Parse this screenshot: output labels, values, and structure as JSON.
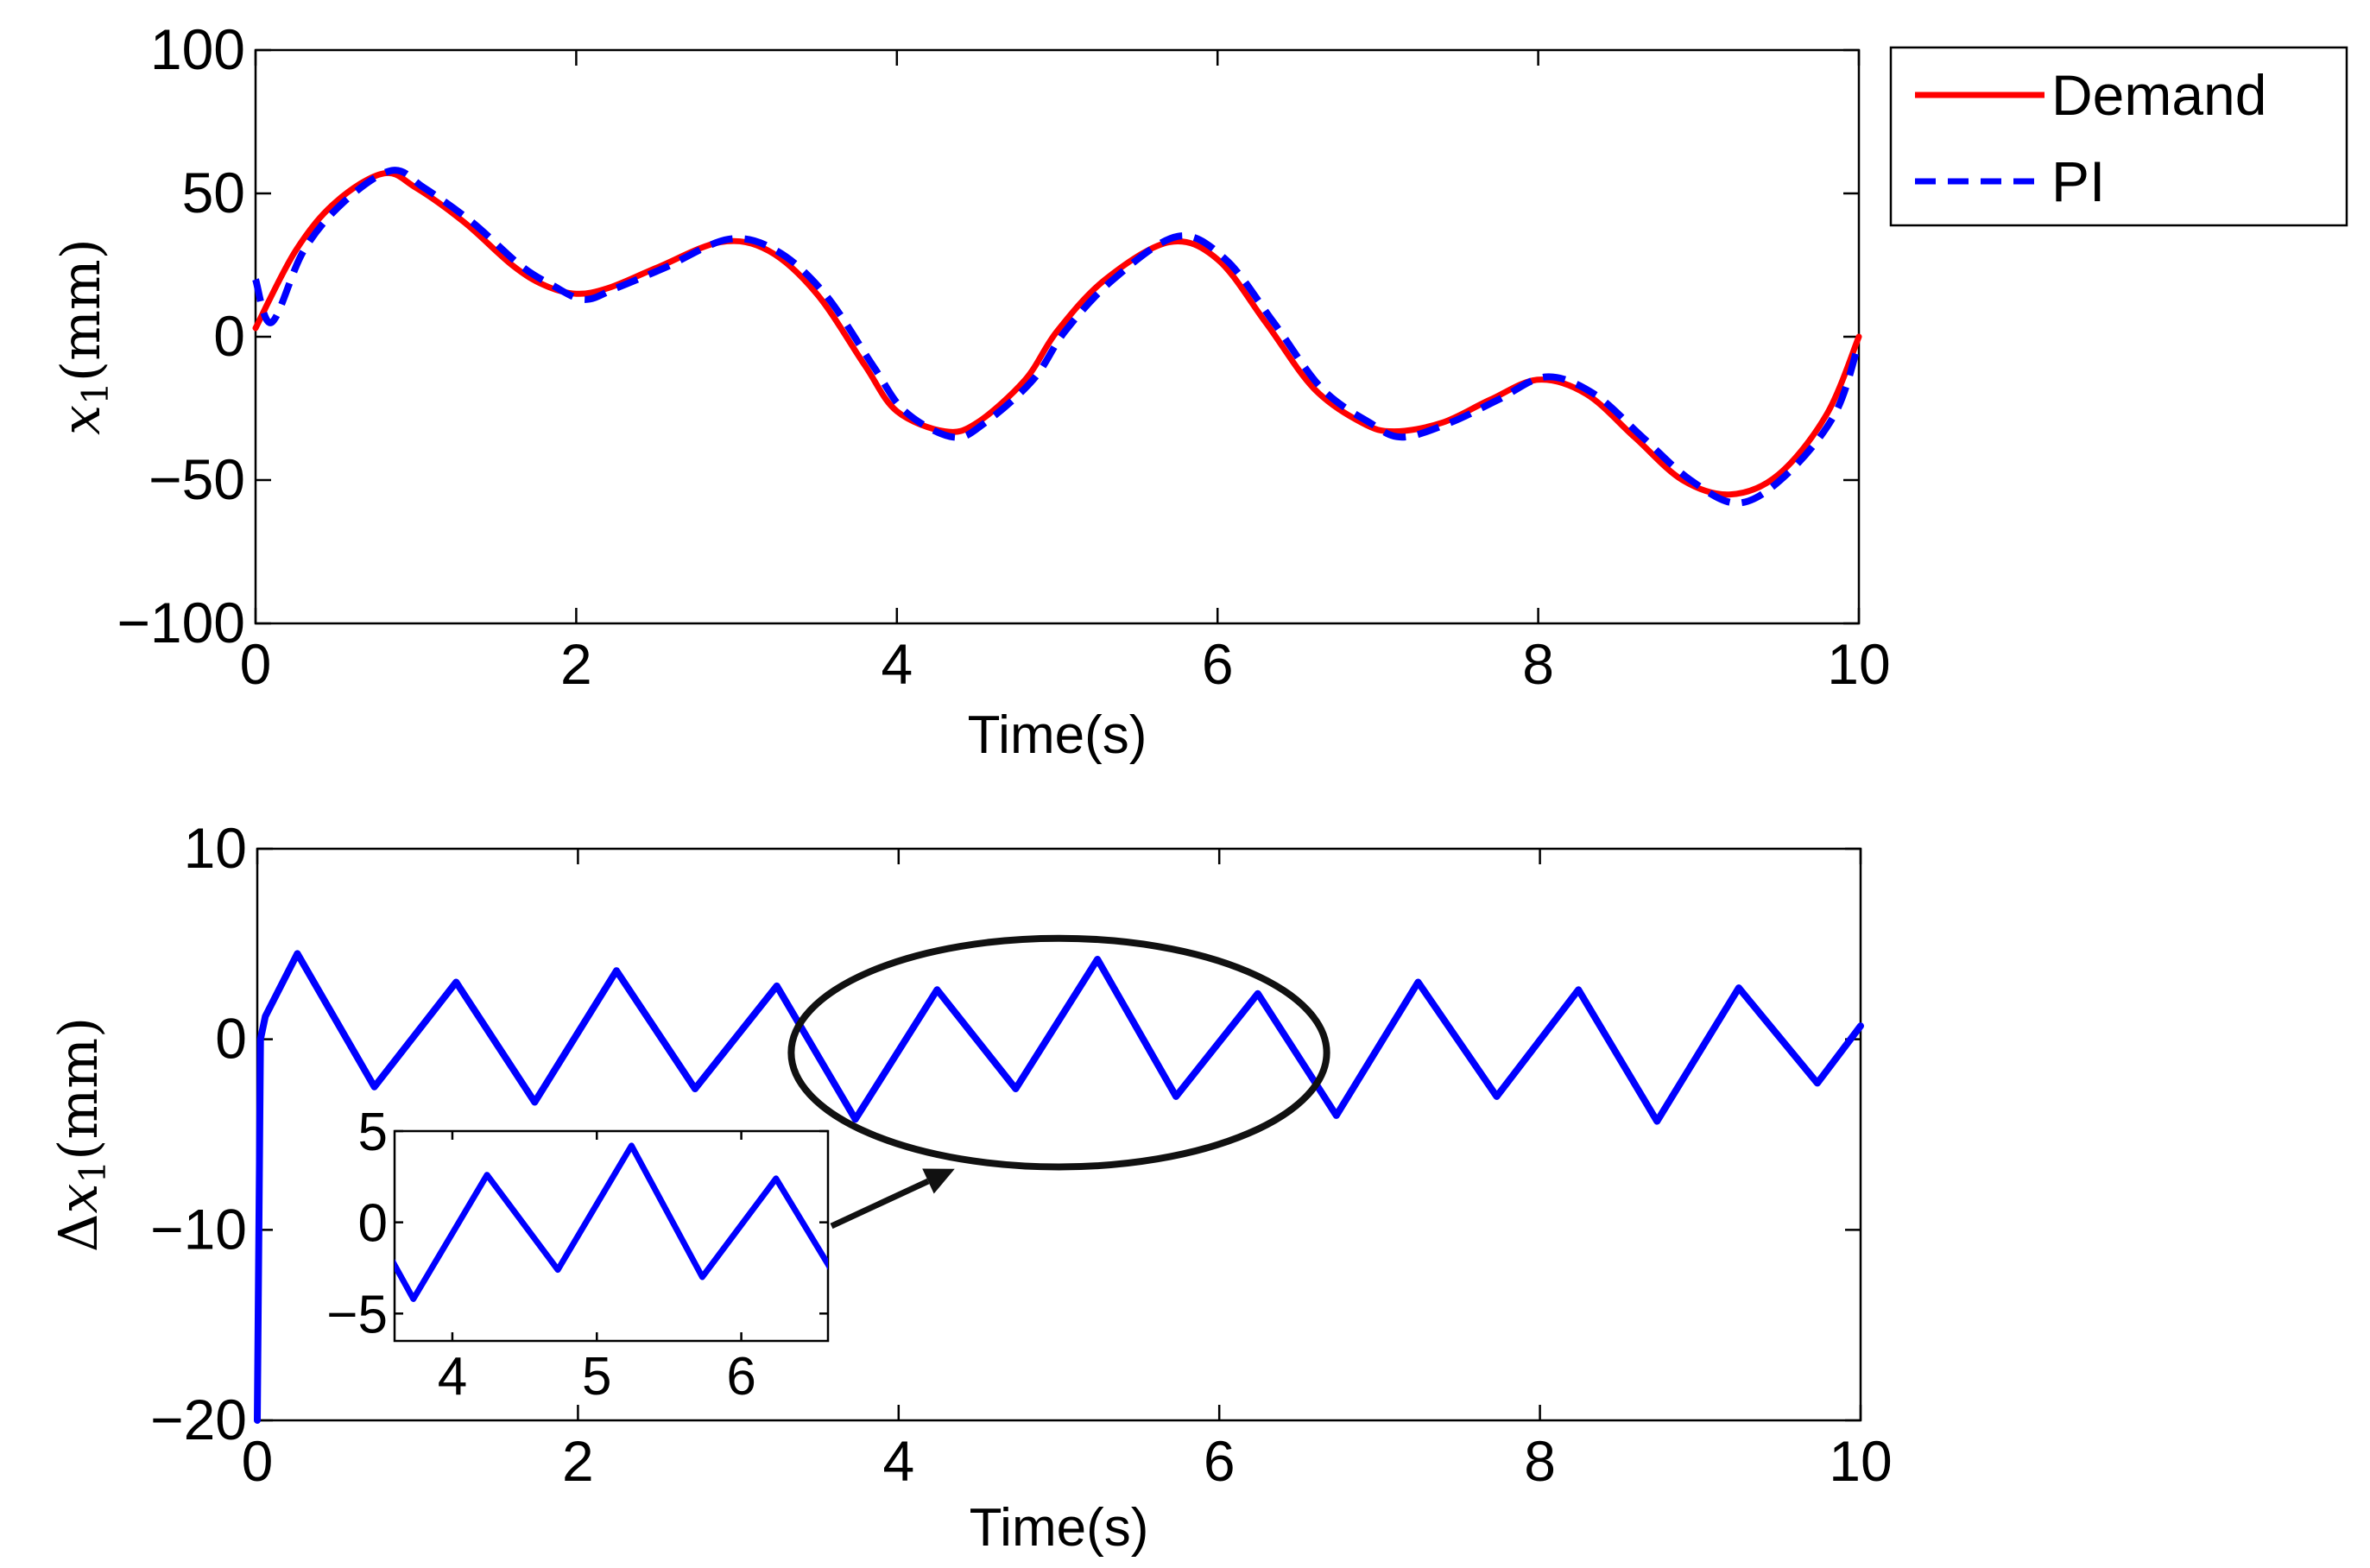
{
  "chart_data": [
    {
      "type": "line",
      "id": "top",
      "xlabel": "Time(s)",
      "ylabel": {
        "var": "x",
        "sub": "1",
        "unit": "(mm)"
      },
      "xlim": [
        0,
        10
      ],
      "ylim": [
        -100,
        100
      ],
      "xticks": [
        0,
        2,
        4,
        6,
        8,
        10
      ],
      "yticks": [
        -100,
        -50,
        0,
        50,
        100
      ],
      "xtick_labels": [
        "0",
        "2",
        "4",
        "6",
        "8",
        "10"
      ],
      "ytick_labels": [
        "−100",
        "−50",
        "0",
        "50",
        "100"
      ],
      "grid": false,
      "legend_position": "outside-top-right",
      "series": [
        {
          "name": "Demand",
          "style": "solid",
          "color": "#ff0000",
          "x": [
            0,
            0.25,
            0.5,
            0.8,
            1.0,
            1.3,
            1.6,
            1.8,
            2.0,
            2.2,
            2.5,
            2.9,
            3.2,
            3.5,
            3.8,
            4.0,
            4.3,
            4.5,
            4.8,
            5.0,
            5.3,
            5.7,
            6.0,
            6.3,
            6.6,
            6.9,
            7.1,
            7.4,
            7.7,
            8.0,
            8.3,
            8.6,
            8.9,
            9.2,
            9.5,
            9.8,
            10.0
          ],
          "y": [
            3,
            30,
            47,
            57,
            52,
            40,
            25,
            18,
            15,
            17,
            24,
            33,
            30,
            15,
            -10,
            -26,
            -33,
            -30,
            -15,
            2,
            20,
            33,
            27,
            5,
            -18,
            -30,
            -33,
            -30,
            -22,
            -15,
            -20,
            -35,
            -50,
            -55,
            -48,
            -27,
            0
          ]
        },
        {
          "name": "PI",
          "style": "dashed",
          "color": "#0000ff",
          "x": [
            0,
            0.1,
            0.3,
            0.55,
            0.85,
            1.05,
            1.35,
            1.65,
            1.85,
            2.05,
            2.25,
            2.55,
            2.95,
            3.25,
            3.55,
            3.85,
            4.05,
            4.35,
            4.55,
            4.85,
            5.05,
            5.35,
            5.75,
            6.05,
            6.35,
            6.65,
            6.95,
            7.15,
            7.45,
            7.75,
            8.05,
            8.35,
            8.65,
            8.95,
            9.25,
            9.55,
            9.85,
            10.0
          ],
          "y": [
            20,
            5,
            30,
            47,
            58,
            52,
            40,
            25,
            18,
            13,
            17,
            24,
            34,
            30,
            15,
            -10,
            -26,
            -35,
            -30,
            -15,
            2,
            20,
            35,
            27,
            5,
            -18,
            -30,
            -35,
            -30,
            -22,
            -14,
            -20,
            -35,
            -50,
            -58,
            -48,
            -27,
            -2
          ]
        }
      ]
    },
    {
      "type": "line",
      "id": "bottom",
      "xlabel": "Time(s)",
      "ylabel": {
        "prefix": "Δ",
        "var": "x",
        "sub": "1",
        "unit": "(mm)"
      },
      "xlim": [
        0,
        10
      ],
      "ylim": [
        -20,
        10
      ],
      "xticks": [
        0,
        2,
        4,
        6,
        8,
        10
      ],
      "yticks": [
        -20,
        -10,
        0,
        10
      ],
      "xtick_labels": [
        "0",
        "2",
        "4",
        "6",
        "8",
        "10"
      ],
      "ytick_labels": [
        "−20",
        "−10",
        "0",
        "10"
      ],
      "grid": false,
      "series": [
        {
          "color": "#0000ff",
          "x": [
            0,
            0.02,
            0.05,
            0.25,
            0.73,
            1.24,
            1.73,
            2.24,
            2.73,
            3.24,
            3.73,
            4.24,
            4.73,
            5.24,
            5.73,
            6.24,
            6.73,
            7.24,
            7.73,
            8.24,
            8.73,
            9.24,
            9.73,
            10.0
          ],
          "y": [
            -20,
            0,
            1.2,
            4.5,
            -2.5,
            3.0,
            -3.3,
            3.6,
            -2.6,
            2.8,
            -4.2,
            2.6,
            -2.6,
            4.2,
            -3.0,
            2.4,
            -4.0,
            3.0,
            -3.0,
            2.6,
            -4.3,
            2.7,
            -2.3,
            0.7
          ]
        }
      ],
      "highlight_ellipse": {
        "cx": 5.0,
        "cy": -0.7,
        "rx": 1.67,
        "ry": 6.0
      },
      "inset": {
        "xlim": [
          3.6,
          6.6
        ],
        "ylim": [
          -6.5,
          5
        ],
        "xticks": [
          4,
          5,
          6
        ],
        "yticks": [
          -5,
          0,
          5
        ],
        "xtick_labels": [
          "4",
          "5",
          "6"
        ],
        "ytick_labels": [
          "−5",
          "0",
          "5"
        ],
        "arrow_to": {
          "x": 4.35,
          "y": -6.8
        }
      }
    }
  ]
}
